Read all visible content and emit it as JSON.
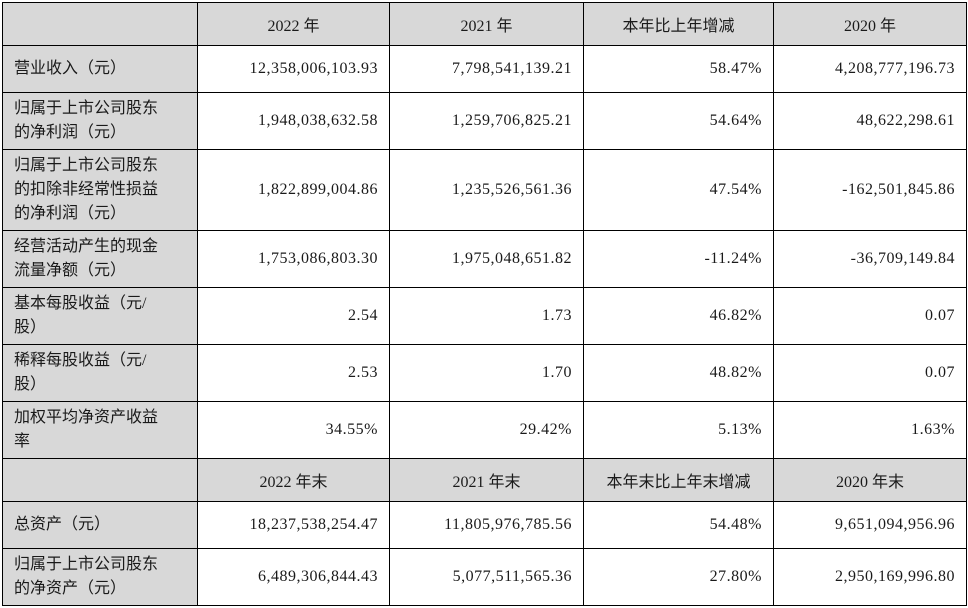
{
  "table": {
    "colors": {
      "header_bg": "#d8d8d8",
      "label_bg": "#d8d8d8",
      "cell_bg": "#ffffff",
      "border": "#000000",
      "text": "#1a1a1a"
    },
    "sections": [
      {
        "header": [
          "",
          "2022 年",
          "2021 年",
          "本年比上年增减",
          "2020 年"
        ],
        "rows": [
          {
            "label": "营业收入（元）",
            "values": [
              "12,358,006,103.93",
              "7,798,541,139.21",
              "58.47%",
              "4,208,777,196.73"
            ]
          },
          {
            "label": "归属于上市公司股东的净利润（元）",
            "values": [
              "1,948,038,632.58",
              "1,259,706,825.21",
              "54.64%",
              "48,622,298.61"
            ]
          },
          {
            "label": "归属于上市公司股东的扣除非经常性损益的净利润（元）",
            "values": [
              "1,822,899,004.86",
              "1,235,526,561.36",
              "47.54%",
              "-162,501,845.86"
            ]
          },
          {
            "label": "经营活动产生的现金流量净额（元）",
            "values": [
              "1,753,086,803.30",
              "1,975,048,651.82",
              "-11.24%",
              "-36,709,149.84"
            ]
          },
          {
            "label": "基本每股收益（元/股）",
            "values": [
              "2.54",
              "1.73",
              "46.82%",
              "0.07"
            ]
          },
          {
            "label": "稀释每股收益（元/股）",
            "values": [
              "2.53",
              "1.70",
              "48.82%",
              "0.07"
            ]
          },
          {
            "label": "加权平均净资产收益率",
            "values": [
              "34.55%",
              "29.42%",
              "5.13%",
              "1.63%"
            ]
          }
        ]
      },
      {
        "header": [
          "",
          "2022 年末",
          "2021 年末",
          "本年末比上年末增减",
          "2020 年末"
        ],
        "rows": [
          {
            "label": "总资产（元）",
            "values": [
              "18,237,538,254.47",
              "11,805,976,785.56",
              "54.48%",
              "9,651,094,956.96"
            ]
          },
          {
            "label": "归属于上市公司股东的净资产（元）",
            "values": [
              "6,489,306,844.43",
              "5,077,511,565.36",
              "27.80%",
              "2,950,169,996.80"
            ]
          }
        ]
      }
    ]
  }
}
